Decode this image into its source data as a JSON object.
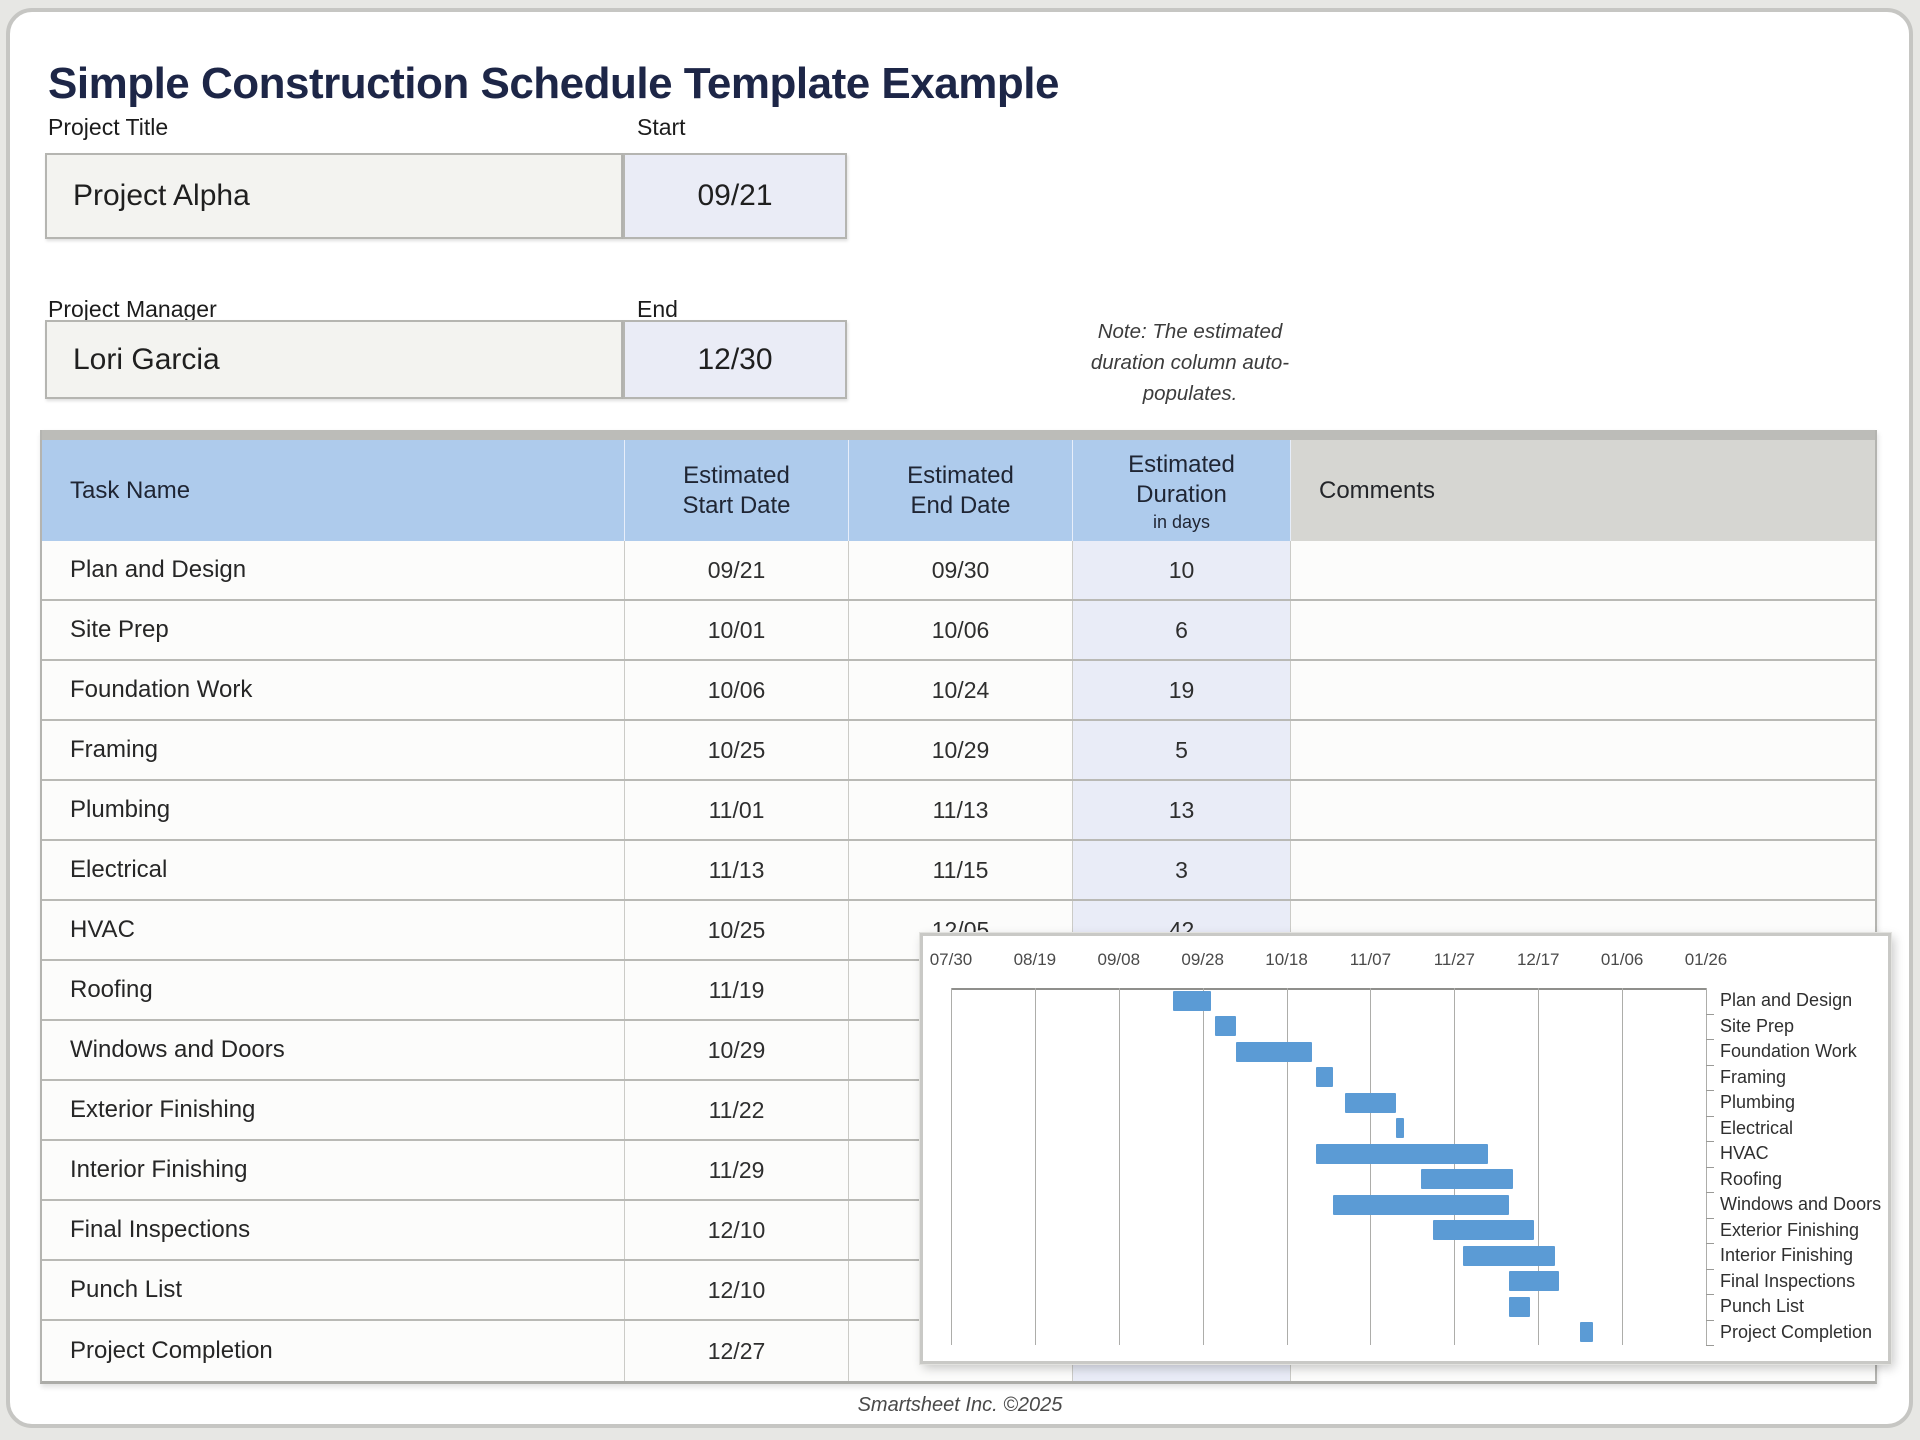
{
  "page": {
    "title": "Simple Construction Schedule Template Example",
    "footer": "Smartsheet Inc. ©2025"
  },
  "fields": {
    "project_title": {
      "label": "Project Title",
      "value": "Project Alpha"
    },
    "start": {
      "label": "Start",
      "value": "09/21"
    },
    "project_manager": {
      "label": "Project Manager",
      "value": "Lori Garcia"
    },
    "end": {
      "label": "End",
      "value": "12/30"
    }
  },
  "note": "Note: The estimated\nduration column auto-\npopulates.",
  "table": {
    "headers": {
      "task": "Task Name",
      "start": "Estimated\nStart Date",
      "end": "Estimated\nEnd Date",
      "duration": "Estimated\nDuration",
      "duration_sub": "in days",
      "comments": "Comments"
    },
    "rows": [
      {
        "task": "Plan and Design",
        "start": "09/21",
        "end": "09/30",
        "duration": "10",
        "comments": ""
      },
      {
        "task": "Site Prep",
        "start": "10/01",
        "end": "10/06",
        "duration": "6",
        "comments": ""
      },
      {
        "task": "Foundation Work",
        "start": "10/06",
        "end": "10/24",
        "duration": "19",
        "comments": ""
      },
      {
        "task": "Framing",
        "start": "10/25",
        "end": "10/29",
        "duration": "5",
        "comments": ""
      },
      {
        "task": "Plumbing",
        "start": "11/01",
        "end": "11/13",
        "duration": "13",
        "comments": ""
      },
      {
        "task": "Electrical",
        "start": "11/13",
        "end": "11/15",
        "duration": "3",
        "comments": ""
      },
      {
        "task": "HVAC",
        "start": "10/25",
        "end": "12/05",
        "duration": "42",
        "comments": ""
      },
      {
        "task": "Roofing",
        "start": "11/19",
        "end": "",
        "duration": "",
        "comments": ""
      },
      {
        "task": "Windows and Doors",
        "start": "10/29",
        "end": "",
        "duration": "",
        "comments": ""
      },
      {
        "task": "Exterior Finishing",
        "start": "11/22",
        "end": "",
        "duration": "",
        "comments": ""
      },
      {
        "task": "Interior Finishing",
        "start": "11/29",
        "end": "",
        "duration": "",
        "comments": ""
      },
      {
        "task": "Final Inspections",
        "start": "12/10",
        "end": "",
        "duration": "",
        "comments": ""
      },
      {
        "task": "Punch List",
        "start": "12/10",
        "end": "",
        "duration": "",
        "comments": ""
      },
      {
        "task": "Project Completion",
        "start": "12/27",
        "end": "",
        "duration": "",
        "comments": ""
      }
    ]
  },
  "chart_data": {
    "type": "bar",
    "subtype": "gantt",
    "title": "",
    "axis_position": "top",
    "labels_position": "right",
    "grid": true,
    "bar_color": "#5b9bd5",
    "x_ticks": [
      "07/30",
      "08/19",
      "09/08",
      "09/28",
      "10/18",
      "11/07",
      "11/27",
      "12/17",
      "01/06",
      "01/26"
    ],
    "tasks": [
      {
        "name": "Plan and Design",
        "start": "09/21",
        "end": "09/30"
      },
      {
        "name": "Site Prep",
        "start": "10/01",
        "end": "10/06"
      },
      {
        "name": "Foundation Work",
        "start": "10/06",
        "end": "10/24"
      },
      {
        "name": "Framing",
        "start": "10/25",
        "end": "10/29"
      },
      {
        "name": "Plumbing",
        "start": "11/01",
        "end": "11/13"
      },
      {
        "name": "Electrical",
        "start": "11/13",
        "end": "11/15"
      },
      {
        "name": "HVAC",
        "start": "10/25",
        "end": "12/05"
      },
      {
        "name": "Roofing",
        "start": "11/19",
        "end": "12/11"
      },
      {
        "name": "Windows and Doors",
        "start": "10/29",
        "end": "12/10"
      },
      {
        "name": "Exterior Finishing",
        "start": "11/22",
        "end": "12/16"
      },
      {
        "name": "Interior Finishing",
        "start": "11/29",
        "end": "12/21"
      },
      {
        "name": "Final Inspections",
        "start": "12/10",
        "end": "12/22"
      },
      {
        "name": "Punch List",
        "start": "12/10",
        "end": "12/15"
      },
      {
        "name": "Project Completion",
        "start": "12/27",
        "end": "12/30"
      }
    ]
  },
  "colors": {
    "title_text": "#1d2647",
    "header_blue": "#aecbec",
    "comments_header_gray": "#d6d6d2",
    "duration_cell": "#e9ecf7",
    "gantt_bar": "#5b9bd5"
  }
}
